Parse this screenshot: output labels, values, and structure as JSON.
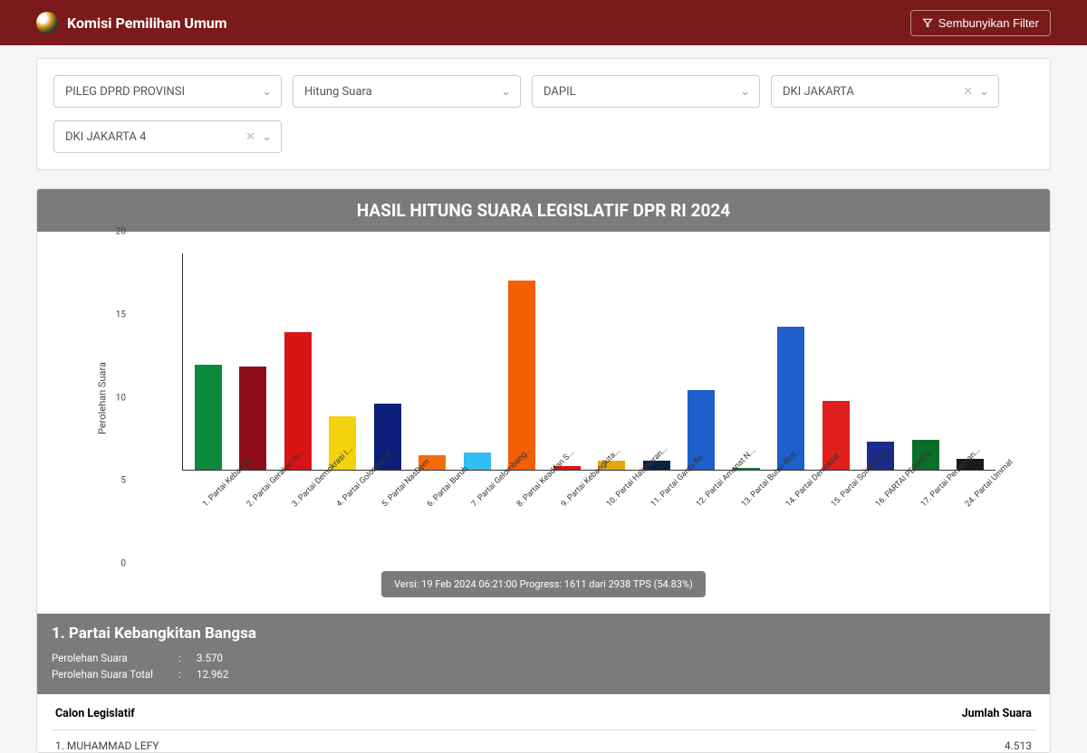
{
  "header": {
    "brand": "Komisi Pemilihan Umum",
    "filter_button_label": "Sembunyikan Filter"
  },
  "filters": {
    "select1": "PILEG DPRD PROVINSI",
    "select2": "Hitung Suara",
    "select3": "DAPIL",
    "select4": "DKI JAKARTA",
    "select5": "DKI JAKARTA 4"
  },
  "chart": {
    "title": "HASIL HITUNG SUARA LEGISLATIF DPR RI 2024",
    "y_label": "Perolehan Suara",
    "y_max": 20,
    "y_ticks": [
      0,
      5,
      10,
      15,
      20
    ],
    "bars": [
      {
        "label": "1. Partai Kebangki...",
        "value": 9.7,
        "color": "#0a8a3a"
      },
      {
        "label": "2. Partai Gerakan In...",
        "value": 9.5,
        "color": "#8f0e1a"
      },
      {
        "label": "3. Partai Demokrasi I...",
        "value": 12.7,
        "color": "#d81414"
      },
      {
        "label": "4. Partai Golongan K...",
        "value": 4.9,
        "color": "#f2d30e"
      },
      {
        "label": "5. Partai NasDem",
        "value": 6.1,
        "color": "#0d1f7a"
      },
      {
        "label": "6. Partai Buruh",
        "value": 1.3,
        "color": "#f26c0f"
      },
      {
        "label": "7. Partai Gelombang...",
        "value": 1.6,
        "color": "#34bdf2"
      },
      {
        "label": "8. Partai Keadilan S...",
        "value": 17.5,
        "color": "#f25f05"
      },
      {
        "label": "9. Partai Kebangkita...",
        "value": 0.3,
        "color": "#d81414"
      },
      {
        "label": "10. Partai Hati Nuran...",
        "value": 0.8,
        "color": "#e6a80f"
      },
      {
        "label": "11. Partai Garda Re...",
        "value": 0.8,
        "color": "#0d2240"
      },
      {
        "label": "12. Partai Amanat N...",
        "value": 7.4,
        "color": "#1f5fcc"
      },
      {
        "label": "13. Partai Bulan Bint...",
        "value": 0.2,
        "color": "#1a7a3a"
      },
      {
        "label": "14. Partai Demokrat",
        "value": 13.2,
        "color": "#1f5fcc"
      },
      {
        "label": "15. Partai Solidaritas...",
        "value": 6.4,
        "color": "#e01f1f"
      },
      {
        "label": "16. PARTAI PERINDO",
        "value": 2.6,
        "color": "#1a2b8a"
      },
      {
        "label": "17. Partai Persatuan...",
        "value": 2.8,
        "color": "#0a6e2a"
      },
      {
        "label": "24. Partai Ummat",
        "value": 1.0,
        "color": "#1a1a1a"
      }
    ],
    "version_label": "Versi: 19 Feb 2024 06:21:00 Progress: 1611 dari 2938 TPS (54.83%)"
  },
  "party_detail": {
    "title": "1. Partai Kebangkitan Bangsa",
    "row1_label": "Perolehan Suara",
    "row1_value": "3.570",
    "row2_label": "Perolehan Suara Total",
    "row2_value": "12.962",
    "col_left": "Calon Legislatif",
    "col_right": "Jumlah Suara",
    "candidate1_name": "1. MUHAMMAD LEFY",
    "candidate1_votes": "4.513"
  }
}
